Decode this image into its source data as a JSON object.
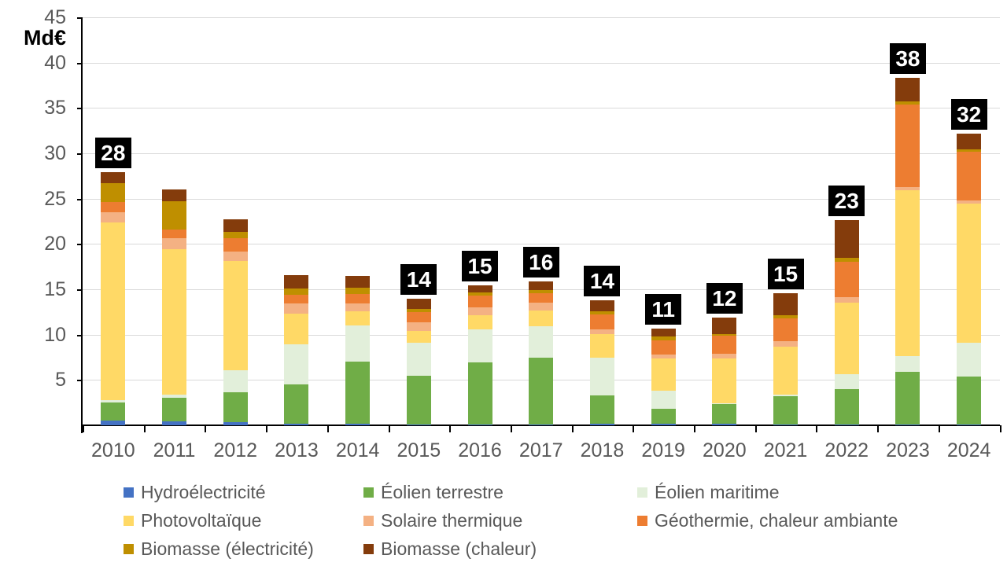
{
  "chart_data": {
    "type": "bar",
    "stacked": true,
    "title": "",
    "ylabel": "Md€",
    "xlabel": "",
    "ylim": [
      0,
      45
    ],
    "ytick_step": 5,
    "grid": "horizontal",
    "gridline_color": "#D9D9D9",
    "axis_line_color": "#000000",
    "axis_text_color": "#595959",
    "legend_position": "bottom",
    "categories": [
      "2010",
      "2011",
      "2012",
      "2013",
      "2014",
      "2015",
      "2016",
      "2017",
      "2018",
      "2019",
      "2020",
      "2021",
      "2022",
      "2023",
      "2024"
    ],
    "series": [
      {
        "name": "Hydroélectricité",
        "color": "#4472C4",
        "values": [
          0.5,
          0.4,
          0.35,
          0.15,
          0.15,
          0.05,
          0.05,
          0.05,
          0.2,
          0.15,
          0.2,
          0.05,
          0.05,
          0.05,
          0.05
        ]
      },
      {
        "name": "Éolien terrestre",
        "color": "#70AD47",
        "values": [
          2.0,
          2.6,
          3.3,
          4.4,
          6.85,
          5.4,
          6.85,
          7.45,
          3.1,
          1.65,
          2.1,
          3.15,
          3.95,
          5.85,
          5.35
        ]
      },
      {
        "name": "Éolien maritime",
        "color": "#E2EFDA",
        "values": [
          0.3,
          0.4,
          2.45,
          4.35,
          4.0,
          3.65,
          3.7,
          3.4,
          4.2,
          2.0,
          0.1,
          0.2,
          1.6,
          1.7,
          3.7
        ]
      },
      {
        "name": "Photovoltaïque",
        "color": "#FFD966",
        "values": [
          19.6,
          16.0,
          12.0,
          3.4,
          1.6,
          1.3,
          1.5,
          1.8,
          2.6,
          3.6,
          5.0,
          5.3,
          7.9,
          18.3,
          15.4
        ]
      },
      {
        "name": "Solaire thermique",
        "color": "#F4B183",
        "values": [
          1.1,
          1.2,
          1.1,
          1.1,
          0.8,
          1.0,
          0.9,
          0.8,
          0.5,
          0.4,
          0.5,
          0.6,
          0.6,
          0.4,
          0.3
        ]
      },
      {
        "name": "Géothermie, chaleur ambiante",
        "color": "#ED7D31",
        "values": [
          1.1,
          1.0,
          1.4,
          1.0,
          1.1,
          1.1,
          1.3,
          1.1,
          1.6,
          1.6,
          2.0,
          2.5,
          3.9,
          9.1,
          5.4
        ]
      },
      {
        "name": "Biomasse (électricité)",
        "color": "#BF8F00",
        "values": [
          2.1,
          3.1,
          0.75,
          0.7,
          0.7,
          0.3,
          0.4,
          0.3,
          0.4,
          0.4,
          0.2,
          0.3,
          0.45,
          0.3,
          0.2
        ]
      },
      {
        "name": "Biomasse (chaleur)",
        "color": "#843C0C",
        "values": [
          1.2,
          1.3,
          1.4,
          1.5,
          1.25,
          1.2,
          0.7,
          1.0,
          1.2,
          0.9,
          1.8,
          2.5,
          4.2,
          2.6,
          1.8
        ]
      }
    ],
    "total_labels": [
      "28",
      null,
      null,
      null,
      null,
      "14",
      "15",
      "16",
      "14",
      "11",
      "12",
      "15",
      "23",
      "38",
      "32"
    ],
    "total_label_style": {
      "background": "#000000",
      "text": "#FFFFFF"
    },
    "legend_columns": [
      [
        0,
        3,
        6
      ],
      [
        1,
        4,
        7
      ],
      [
        2,
        5
      ]
    ]
  }
}
